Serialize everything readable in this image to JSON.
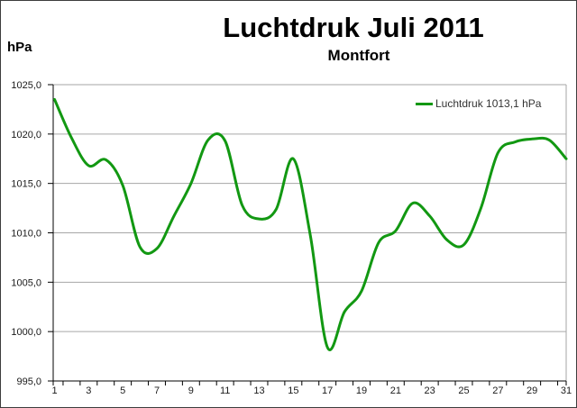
{
  "header": {
    "title": "Luchtdruk Juli 2011",
    "subtitle": "Montfort",
    "unit_label": "hPa"
  },
  "legend": {
    "label": "Luchtdruk 1013,1 hPa"
  },
  "colors": {
    "line": "#129812",
    "grid": "#a6a6a6",
    "axis": "#000000",
    "tick_text": "#1a1a1a",
    "legend_text": "#333333",
    "frame": "#3d3d3d",
    "background": "#ffffff"
  },
  "chart_data": {
    "type": "line",
    "title": "Luchtdruk Juli 2011",
    "subtitle": "Montfort",
    "xlabel": "",
    "ylabel": "hPa",
    "ylim": [
      995,
      1025
    ],
    "y_ticks": [
      995,
      1000,
      1005,
      1010,
      1015,
      1020,
      1025
    ],
    "y_tick_labels": [
      "995,0",
      "1000,0",
      "1005,0",
      "1010,0",
      "1015,0",
      "1020,0",
      "1025,0"
    ],
    "x": [
      1,
      2,
      3,
      4,
      5,
      6,
      7,
      8,
      9,
      10,
      11,
      12,
      13,
      14,
      15,
      16,
      17,
      18,
      19,
      20,
      21,
      22,
      23,
      24,
      25,
      26,
      27,
      28,
      29,
      30,
      31
    ],
    "x_tick_labels": [
      "1",
      "3",
      "5",
      "7",
      "9",
      "11",
      "13",
      "15",
      "17",
      "19",
      "21",
      "23",
      "25",
      "27",
      "29",
      "31"
    ],
    "grid": "horizontal",
    "smooth": true,
    "legend_position": "top-right",
    "series": [
      {
        "name": "Luchtdruk 1013,1 hPa",
        "color": "#129812",
        "values": [
          1023.5,
          1019.6,
          1016.8,
          1017.4,
          1014.8,
          1008.6,
          1008.4,
          1011.7,
          1015.0,
          1019.4,
          1019.3,
          1012.8,
          1011.4,
          1012.4,
          1017.5,
          1009.7,
          998.4,
          1002.0,
          1004.1,
          1009.0,
          1010.2,
          1013.0,
          1011.7,
          1009.3,
          1008.8,
          1012.5,
          1018.1,
          1019.2,
          1019.5,
          1019.4,
          1017.5
        ]
      }
    ]
  }
}
